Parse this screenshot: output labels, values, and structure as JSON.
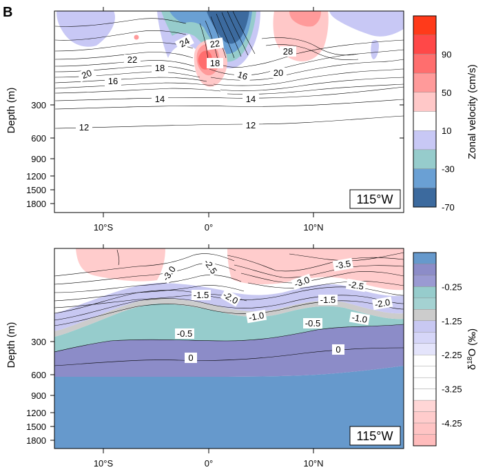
{
  "panel_letter": "B",
  "chart_data": [
    {
      "type": "contour",
      "panel": "top",
      "xlabel": "",
      "ylabel": "Depth (m)",
      "x_ticks": [
        "10°S",
        "0°",
        "10°N"
      ],
      "y_ticks": [
        "300",
        "600",
        "900",
        "1200",
        "1500",
        "1800"
      ],
      "annotation": "115°W",
      "contour_labels": [
        "24",
        "22",
        "22",
        "18",
        "18",
        "20",
        "16",
        "16",
        "20",
        "28",
        "14",
        "14",
        "12",
        "12"
      ],
      "colorbar": {
        "label": "Zonal velocity (cm/s)",
        "tick_labels": [
          "90",
          "50",
          "10",
          "-30",
          "-70"
        ],
        "colors": [
          "#ff3a1a",
          "#ff4848",
          "#ff6e6e",
          "#ff9a9a",
          "#ffc8c8",
          "#ffffff",
          "#c8c8f5",
          "#96cccc",
          "#6aa0d4",
          "#3c6a9e"
        ]
      }
    },
    {
      "type": "contour",
      "panel": "bottom",
      "xlabel": "",
      "ylabel": "Depth (m)",
      "x_ticks": [
        "10°S",
        "0°",
        "10°N"
      ],
      "y_ticks": [
        "300",
        "600",
        "900",
        "1200",
        "1500",
        "1800"
      ],
      "annotation": "115°W",
      "contour_labels": [
        "-3.0",
        "-2.5",
        "-2.0",
        "-1.5",
        "-1.0",
        "-0.5",
        "0",
        "-3.5",
        "-3.0",
        "-2.5",
        "-2.0",
        "-1.5",
        "-1.0",
        "-0.5",
        "0"
      ],
      "colorbar": {
        "label": "δ18O (‰)",
        "tick_labels": [
          "-0.25",
          "-1.25",
          "-2.25",
          "-3.25",
          "-4.25"
        ],
        "colors": [
          "#6699cc",
          "#8c8cc8",
          "#9a9ad2",
          "#96cccc",
          "#a4d2d2",
          "#cccccc",
          "#c8c8f2",
          "#d6d6f8",
          "#e4e4fb",
          "#ffffff",
          "#ffffff",
          "#ffffff",
          "#ffffff",
          "#ffd6d6",
          "#ffcccc",
          "#ffc4c4",
          "#ffbcbc"
        ]
      }
    }
  ]
}
